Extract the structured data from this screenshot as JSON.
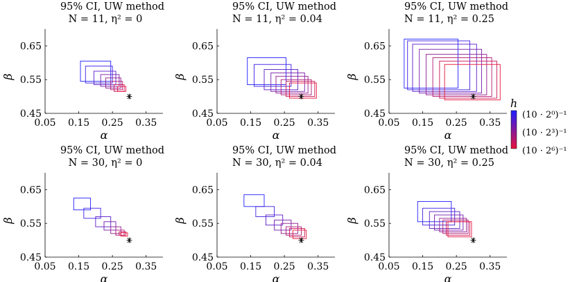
{
  "chart_data": [
    {
      "type": "rectangles",
      "title": [
        "95% CI, UW method",
        "N = 11, η² = 0"
      ],
      "xlabel": "α",
      "ylabel": "β",
      "xlim": [
        0.05,
        0.4
      ],
      "ylim": [
        0.45,
        0.7
      ],
      "xticks": [
        "0.05",
        "0.15",
        "0.25",
        "0.35"
      ],
      "yticks": [
        "0.45",
        "0.55",
        "0.65"
      ],
      "true_point": [
        0.3,
        0.5
      ],
      "rects": [
        [
          0.155,
          0.545,
          0.245,
          0.605
        ],
        [
          0.17,
          0.54,
          0.25,
          0.59
        ],
        [
          0.195,
          0.535,
          0.26,
          0.575
        ],
        [
          0.215,
          0.53,
          0.27,
          0.565
        ],
        [
          0.23,
          0.525,
          0.275,
          0.555
        ],
        [
          0.245,
          0.52,
          0.28,
          0.545
        ],
        [
          0.255,
          0.515,
          0.285,
          0.535
        ],
        [
          0.265,
          0.515,
          0.29,
          0.53
        ]
      ]
    },
    {
      "type": "rectangles",
      "title": [
        "95% CI, UW method",
        "N = 11, η² = 0.04"
      ],
      "xlabel": "α",
      "ylabel": "β",
      "xlim": [
        0.05,
        0.4
      ],
      "ylim": [
        0.45,
        0.7
      ],
      "xticks": [
        "0.05",
        "0.15",
        "0.25",
        "0.35"
      ],
      "yticks": [
        "0.45",
        "0.55",
        "0.65"
      ],
      "true_point": [
        0.3,
        0.5
      ],
      "rects": [
        [
          0.14,
          0.535,
          0.255,
          0.615
        ],
        [
          0.16,
          0.53,
          0.27,
          0.595
        ],
        [
          0.19,
          0.52,
          0.29,
          0.58
        ],
        [
          0.21,
          0.515,
          0.31,
          0.57
        ],
        [
          0.225,
          0.51,
          0.32,
          0.56
        ],
        [
          0.24,
          0.505,
          0.33,
          0.55
        ],
        [
          0.255,
          0.5,
          0.34,
          0.545
        ],
        [
          0.265,
          0.495,
          0.345,
          0.54
        ]
      ]
    },
    {
      "type": "rectangles",
      "title": [
        "95% CI, UW method",
        "N = 11, η² = 0.25"
      ],
      "xlabel": "α",
      "ylabel": "β",
      "xlim": [
        0.05,
        0.4
      ],
      "ylim": [
        0.45,
        0.7
      ],
      "xticks": [
        "0.05",
        "0.15",
        "0.25",
        "0.35"
      ],
      "yticks": [
        "0.45",
        "0.55",
        "0.65"
      ],
      "true_point": [
        0.3,
        0.5
      ],
      "rects": [
        [
          0.095,
          0.525,
          0.255,
          0.67
        ],
        [
          0.105,
          0.52,
          0.29,
          0.665
        ],
        [
          0.12,
          0.515,
          0.31,
          0.655
        ],
        [
          0.14,
          0.51,
          0.325,
          0.64
        ],
        [
          0.16,
          0.505,
          0.34,
          0.625
        ],
        [
          0.18,
          0.5,
          0.355,
          0.615
        ],
        [
          0.2,
          0.495,
          0.37,
          0.605
        ],
        [
          0.215,
          0.49,
          0.38,
          0.595
        ]
      ]
    },
    {
      "type": "rectangles",
      "title": [
        "95% CI, UW method",
        "N = 30, η² = 0"
      ],
      "xlabel": "α",
      "ylabel": "β",
      "xlim": [
        0.05,
        0.4
      ],
      "ylim": [
        0.45,
        0.7
      ],
      "xticks": [
        "0.05",
        "0.15",
        "0.25",
        "0.35"
      ],
      "yticks": [
        "0.45",
        "0.55",
        "0.65"
      ],
      "true_point": [
        0.3,
        0.5
      ],
      "rects": [
        [
          0.135,
          0.59,
          0.185,
          0.625
        ],
        [
          0.165,
          0.565,
          0.215,
          0.595
        ],
        [
          0.2,
          0.54,
          0.245,
          0.57
        ],
        [
          0.225,
          0.53,
          0.26,
          0.555
        ],
        [
          0.245,
          0.52,
          0.275,
          0.54
        ],
        [
          0.26,
          0.515,
          0.285,
          0.53
        ],
        [
          0.27,
          0.515,
          0.29,
          0.525
        ],
        [
          0.275,
          0.512,
          0.295,
          0.522
        ]
      ]
    },
    {
      "type": "rectangles",
      "title": [
        "95% CI, UW method",
        "N = 30, η² = 0.04"
      ],
      "xlabel": "α",
      "ylabel": "β",
      "xlim": [
        0.05,
        0.4
      ],
      "ylim": [
        0.45,
        0.7
      ],
      "xticks": [
        "0.05",
        "0.15",
        "0.25",
        "0.35"
      ],
      "yticks": [
        "0.45",
        "0.55",
        "0.65"
      ],
      "true_point": [
        0.3,
        0.5
      ],
      "rects": [
        [
          0.13,
          0.6,
          0.19,
          0.635
        ],
        [
          0.165,
          0.57,
          0.22,
          0.6
        ],
        [
          0.195,
          0.545,
          0.245,
          0.575
        ],
        [
          0.22,
          0.53,
          0.27,
          0.56
        ],
        [
          0.24,
          0.52,
          0.29,
          0.55
        ],
        [
          0.255,
          0.515,
          0.3,
          0.54
        ],
        [
          0.265,
          0.51,
          0.31,
          0.535
        ],
        [
          0.275,
          0.505,
          0.315,
          0.53
        ]
      ]
    },
    {
      "type": "rectangles",
      "title": [
        "95% CI, UW method",
        "N = 30, η² = 0.25"
      ],
      "xlabel": "α",
      "ylabel": "β",
      "xlim": [
        0.05,
        0.4
      ],
      "ylim": [
        0.45,
        0.7
      ],
      "xticks": [
        "0.05",
        "0.15",
        "0.25",
        "0.35"
      ],
      "yticks": [
        "0.45",
        "0.55",
        "0.65"
      ],
      "true_point": [
        0.3,
        0.5
      ],
      "rects": [
        [
          0.135,
          0.555,
          0.235,
          0.615
        ],
        [
          0.15,
          0.545,
          0.245,
          0.595
        ],
        [
          0.17,
          0.535,
          0.26,
          0.585
        ],
        [
          0.185,
          0.53,
          0.27,
          0.575
        ],
        [
          0.2,
          0.525,
          0.28,
          0.565
        ],
        [
          0.21,
          0.52,
          0.285,
          0.56
        ],
        [
          0.22,
          0.515,
          0.29,
          0.555
        ],
        [
          0.225,
          0.51,
          0.295,
          0.555
        ]
      ]
    }
  ],
  "colorbar": {
    "label": "h",
    "colors": {
      "top": "#1f1fff",
      "bottom": "#e8123a"
    },
    "ticks": [
      "(10 · 2⁰)⁻¹",
      "(10 · 2³)⁻¹",
      "(10 · 2⁶)⁻¹"
    ]
  }
}
